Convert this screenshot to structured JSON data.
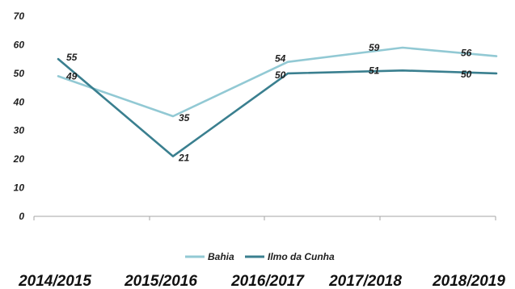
{
  "chart_data": {
    "type": "line",
    "categories": [
      "2014/2015",
      "2015/2016",
      "2016/2017",
      "2017/2018",
      "2018/2019"
    ],
    "series": [
      {
        "name": "Bahia",
        "values": [
          49,
          35,
          54,
          59,
          56
        ],
        "color": "#92c9d4"
      },
      {
        "name": "Ilmo da Cunha",
        "values": [
          55,
          21,
          50,
          51,
          50
        ],
        "color": "#3a7f8f"
      }
    ],
    "yticks": [
      "0",
      "10",
      "20",
      "30",
      "40",
      "50",
      "60",
      "70"
    ],
    "ylim": [
      0,
      70
    ],
    "grid": false,
    "legend_position": "bottom",
    "axis_color": "#a6a6a6"
  }
}
